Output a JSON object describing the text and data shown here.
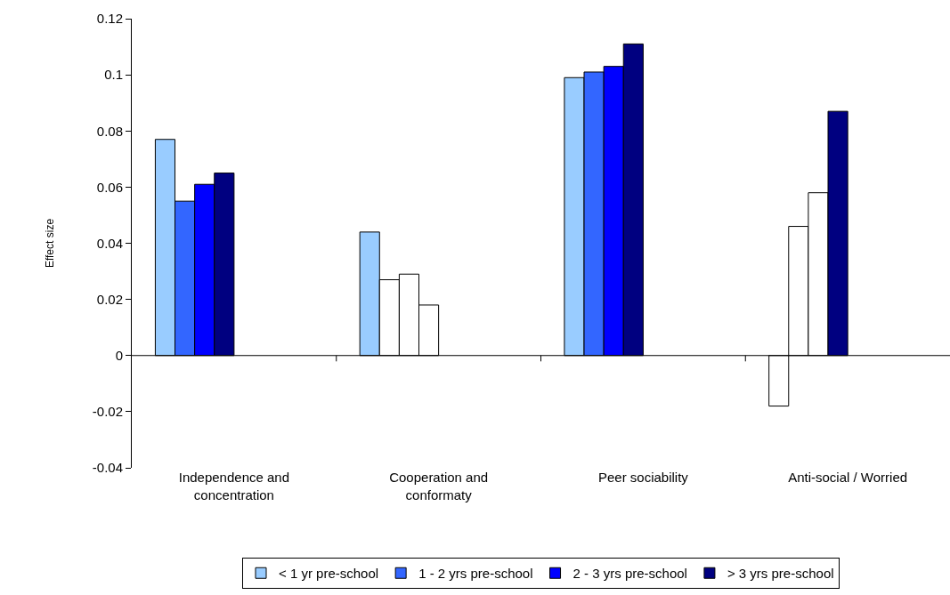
{
  "chart_data": {
    "type": "bar",
    "ylabel": "Effect size",
    "categories": [
      "Independence and concentration",
      "Cooperation and conformaty",
      "Peer sociability",
      "Anti-social / Worried"
    ],
    "series": [
      {
        "name": "< 1 yr pre-school",
        "color": "#99ccff",
        "colors": [
          "#99ccff",
          "#99ccff",
          "#99ccff",
          "#ffffff"
        ],
        "values": [
          0.077,
          0.044,
          0.099,
          -0.018
        ]
      },
      {
        "name": "1 - 2 yrs pre-school",
        "color": "#3366ff",
        "colors": [
          "#3366ff",
          "#ffffff",
          "#3366ff",
          "#ffffff"
        ],
        "values": [
          0.055,
          0.027,
          0.101,
          0.046
        ]
      },
      {
        "name": "2 - 3 yrs pre-school",
        "color": "#0000ff",
        "colors": [
          "#0000ff",
          "#ffffff",
          "#0000ff",
          "#ffffff"
        ],
        "values": [
          0.061,
          0.029,
          0.103,
          0.058
        ]
      },
      {
        "name": "> 3 yrs pre-school",
        "color": "#000080",
        "colors": [
          "#000080",
          "#ffffff",
          "#000080",
          "#000080"
        ],
        "values": [
          0.065,
          0.018,
          0.111,
          0.087
        ]
      }
    ],
    "ylim": [
      -0.04,
      0.12
    ],
    "yticks": [
      -0.04,
      -0.02,
      0,
      0.02,
      0.04,
      0.06,
      0.08,
      0.1,
      0.12
    ],
    "legend": "bottom"
  }
}
